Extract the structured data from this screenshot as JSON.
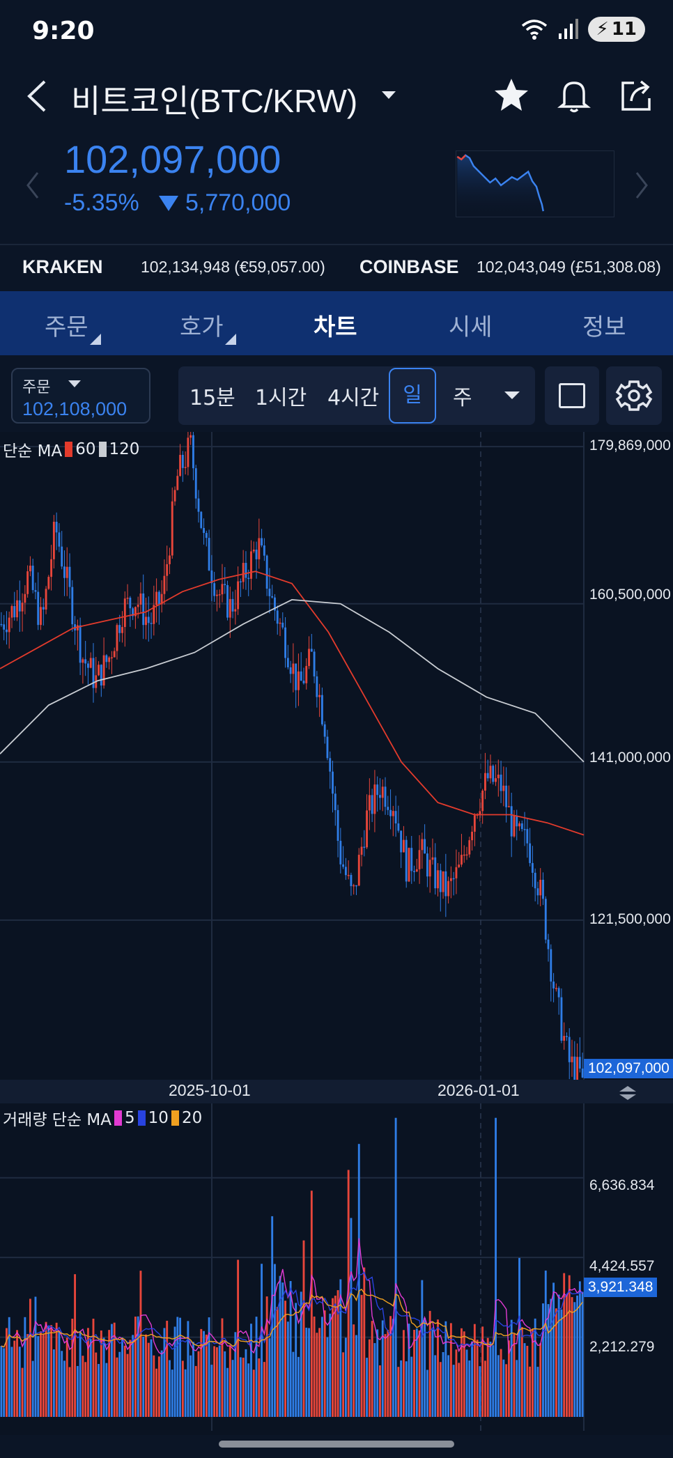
{
  "status": {
    "time": "9:20",
    "battery": "11"
  },
  "header": {
    "title": "비트코인(BTC/KRW)"
  },
  "quote": {
    "price": "102,097,000",
    "change_pct": "-5.35%",
    "change_abs": "5,770,000"
  },
  "exchanges": [
    {
      "name": "KRAKEN",
      "value": "102,134,948 (€59,057.00)"
    },
    {
      "name": "COINBASE",
      "value": "102,043,049 (£51,308.08)"
    }
  ],
  "tabs": [
    {
      "label": "주문"
    },
    {
      "label": "호가"
    },
    {
      "label": "차트"
    },
    {
      "label": "시세"
    },
    {
      "label": "정보"
    }
  ],
  "order": {
    "label": "주문",
    "value": "102,108,000"
  },
  "periods": [
    {
      "label": "15분"
    },
    {
      "label": "1시간"
    },
    {
      "label": "4시간"
    },
    {
      "label": "일"
    },
    {
      "label": "주"
    }
  ],
  "colors": {
    "up": "#e8463b",
    "down": "#2f7de6",
    "accent": "#3b83f0",
    "ma60": "#e33b2c",
    "ma120": "#c9cdd3",
    "vol5": "#e23ad2",
    "vol10": "#2843e0",
    "vol20": "#f0a020"
  },
  "chart_data": [
    {
      "type": "candlestick",
      "legend": {
        "prefix": "단순 MA",
        "ma1": "60",
        "ma2": "120"
      },
      "y_ticks": [
        "179,869,000",
        "160,500,000",
        "141,000,000",
        "121,500,000"
      ],
      "current_price": "102,097,000",
      "x_ticks": [
        "2025-10-01",
        "2026-01-01"
      ],
      "ylim": [
        102000000,
        181000000
      ],
      "close_path": [
        158000000,
        160000000,
        164000000,
        158000000,
        170000000,
        162000000,
        154000000,
        151000000,
        154000000,
        160000000,
        161000000,
        158000000,
        162000000,
        176000000,
        180000000,
        168000000,
        162000000,
        160000000,
        164000000,
        168000000,
        161000000,
        156000000,
        150000000,
        154000000,
        145000000,
        130000000,
        124000000,
        134000000,
        138000000,
        136000000,
        128000000,
        130000000,
        127000000,
        125000000,
        128000000,
        135000000,
        139000000,
        138000000,
        132000000,
        131000000,
        124000000,
        112000000,
        104000000,
        102097000
      ],
      "ma60_path": [
        152500000,
        155000000,
        157500000,
        158500000,
        159500000,
        162000000,
        163500000,
        164500000,
        163000000,
        157000000,
        149000000,
        141000000,
        136000000,
        134500000,
        134500000,
        133500000,
        132000000
      ],
      "ma120_path": [
        142000000,
        148000000,
        151000000,
        152500000,
        154500000,
        158000000,
        161000000,
        160500000,
        157000000,
        152500000,
        149000000,
        147000000,
        141000000
      ]
    },
    {
      "type": "bar",
      "legend": {
        "prefix": "거래량 단순 MA",
        "ma1": "5",
        "ma2": "10",
        "ma3": "20"
      },
      "y_ticks": [
        "6,636.834",
        "4,424.557",
        "2,212.279"
      ],
      "current_value": "3,921.348",
      "ylim": [
        0,
        8700
      ]
    }
  ]
}
